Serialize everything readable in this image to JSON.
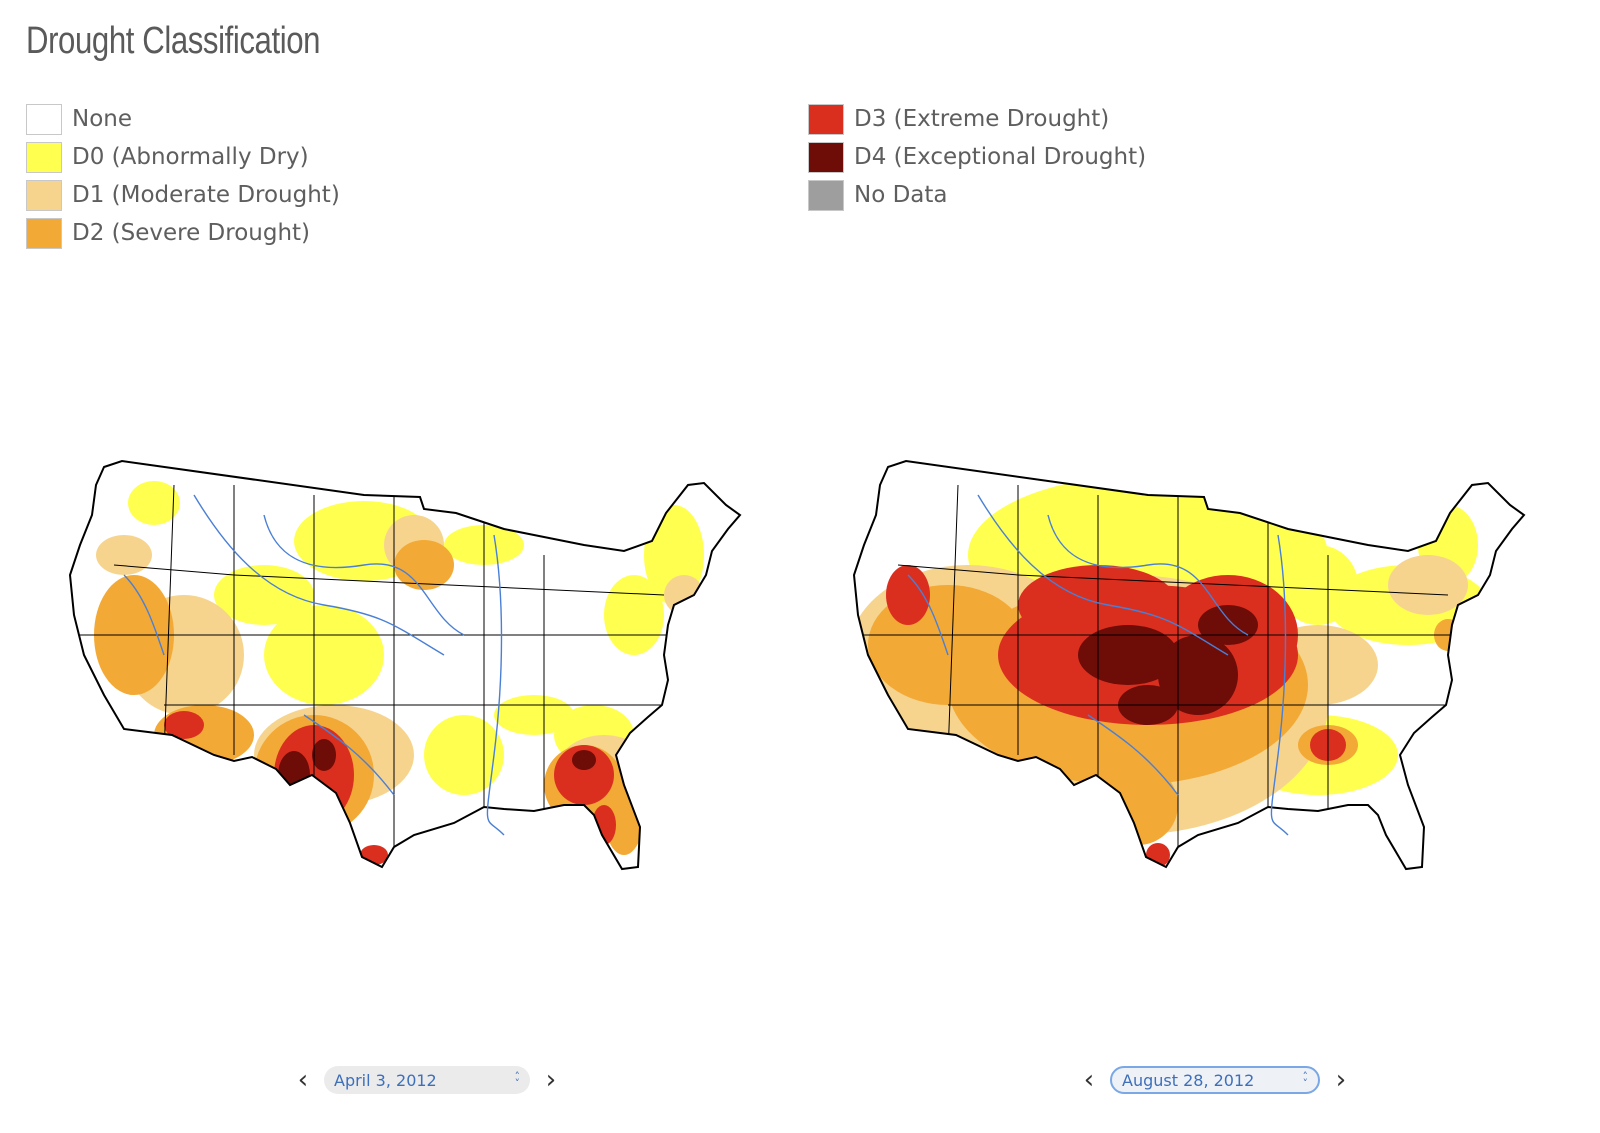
{
  "title": "Drought Classification",
  "legend": {
    "left": [
      {
        "label": "None",
        "color": "#ffffff"
      },
      {
        "label": "D0 (Abnormally Dry)",
        "color": "#ffff50"
      },
      {
        "label": "D1 (Moderate Drought)",
        "color": "#f6d48e"
      },
      {
        "label": "D2 (Severe Drought)",
        "color": "#f3a935"
      }
    ],
    "right": [
      {
        "label": "D3 (Extreme Drought)",
        "color": "#da2f1f"
      },
      {
        "label": "D4 (Exceptional Drought)",
        "color": "#6e0c07"
      },
      {
        "label": "No Data",
        "color": "#9e9e9e"
      }
    ]
  },
  "maps": {
    "left": {
      "date": "April 3, 2012"
    },
    "right": {
      "date": "August 28, 2012"
    }
  },
  "icons": {
    "prev": "chevron-left-icon",
    "next": "chevron-right-icon",
    "select": "up-down-chevron-icon"
  }
}
